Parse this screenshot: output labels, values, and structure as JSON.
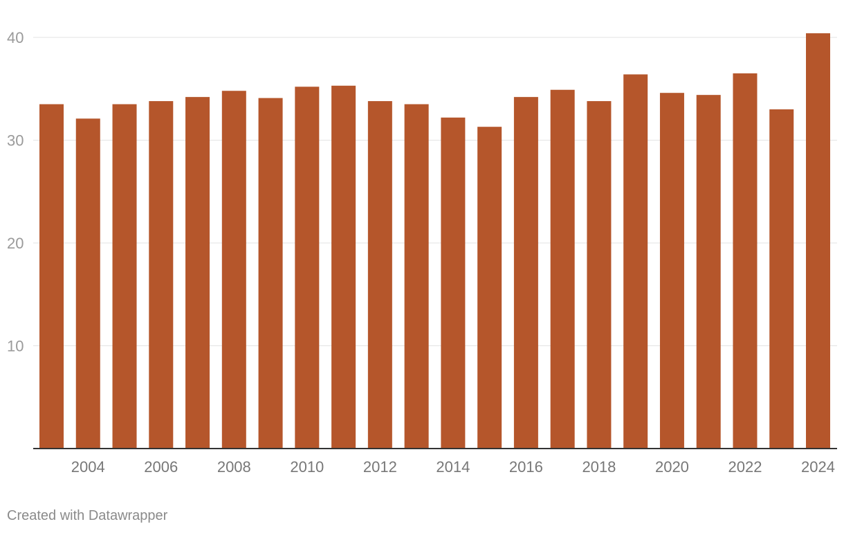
{
  "chart_data": {
    "type": "bar",
    "categories": [
      "2003",
      "2004",
      "2005",
      "2006",
      "2007",
      "2008",
      "2009",
      "2010",
      "2011",
      "2012",
      "2013",
      "2014",
      "2015",
      "2016",
      "2017",
      "2018",
      "2019",
      "2020",
      "2021",
      "2022",
      "2023",
      "2024"
    ],
    "values": [
      33.5,
      32.1,
      33.5,
      33.8,
      34.2,
      34.8,
      34.1,
      35.2,
      35.3,
      33.8,
      33.5,
      32.2,
      31.3,
      34.2,
      34.9,
      33.8,
      36.4,
      34.6,
      34.4,
      36.5,
      33.0,
      40.4
    ],
    "x_tick_labels": [
      "2004",
      "2006",
      "2008",
      "2010",
      "2012",
      "2014",
      "2016",
      "2018",
      "2020",
      "2022",
      "2024"
    ],
    "y_ticks": [
      10,
      20,
      30,
      40
    ],
    "ylim": [
      0,
      40
    ],
    "bar_color": "#b5562b",
    "grid": true,
    "title": "",
    "xlabel": "",
    "ylabel": ""
  },
  "footer": {
    "credit": "Created with Datawrapper"
  },
  "colors": {
    "bar": "#b5562b",
    "grid": "#e3e3e3",
    "axis": "#333333",
    "tick_text": "#9a9a9a"
  }
}
